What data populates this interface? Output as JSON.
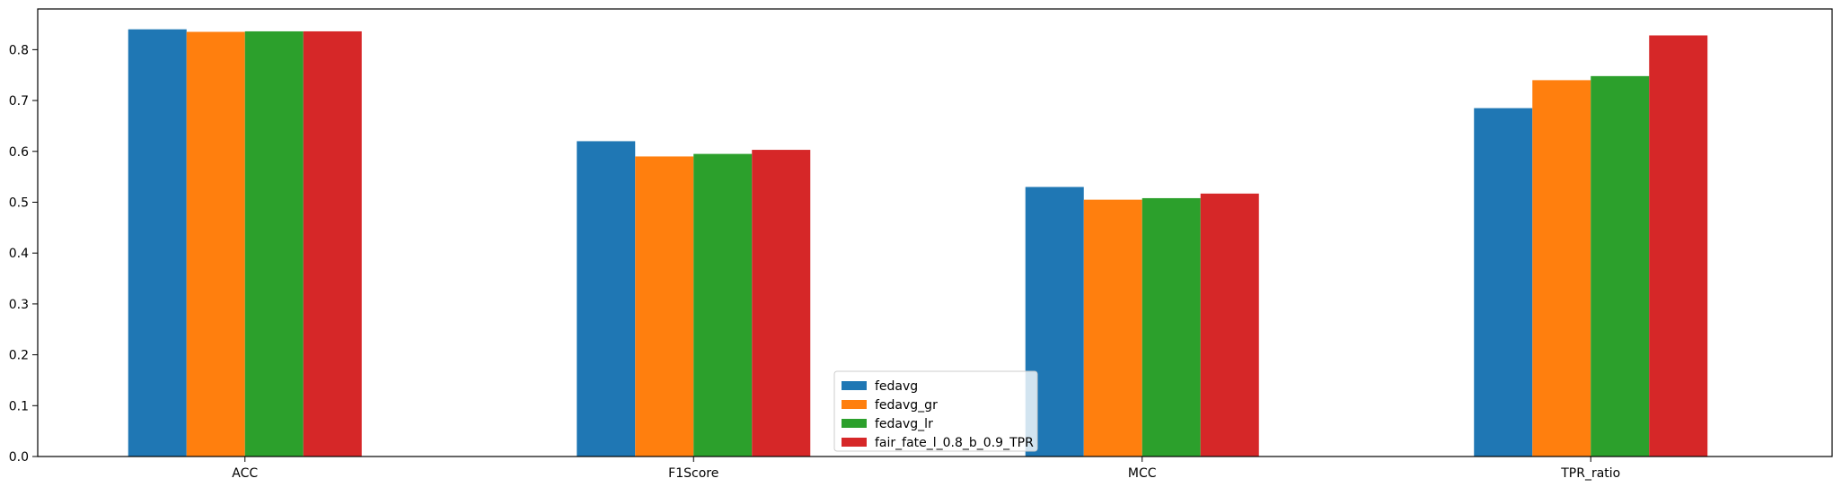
{
  "chart_data": {
    "type": "bar",
    "categories": [
      "ACC",
      "F1Score",
      "MCC",
      "TPR_ratio"
    ],
    "series": [
      {
        "name": "fedavg",
        "color": "#1f77b4",
        "values": [
          0.84,
          0.62,
          0.53,
          0.685
        ]
      },
      {
        "name": "fedavg_gr",
        "color": "#ff7f0e",
        "values": [
          0.835,
          0.59,
          0.505,
          0.74
        ]
      },
      {
        "name": "fedavg_lr",
        "color": "#2ca02c",
        "values": [
          0.836,
          0.595,
          0.508,
          0.748
        ]
      },
      {
        "name": "fair_fate_l_0.8_b_0.9_TPR",
        "color": "#d62728",
        "values": [
          0.836,
          0.603,
          0.517,
          0.828
        ]
      }
    ],
    "ylim": [
      0,
      0.88
    ],
    "yticks": [
      "0.0",
      "0.1",
      "0.2",
      "0.3",
      "0.4",
      "0.5",
      "0.6",
      "0.7",
      "0.8"
    ],
    "title": "",
    "xlabel": "",
    "ylabel": "",
    "legend": "lower-center",
    "grid": false
  }
}
